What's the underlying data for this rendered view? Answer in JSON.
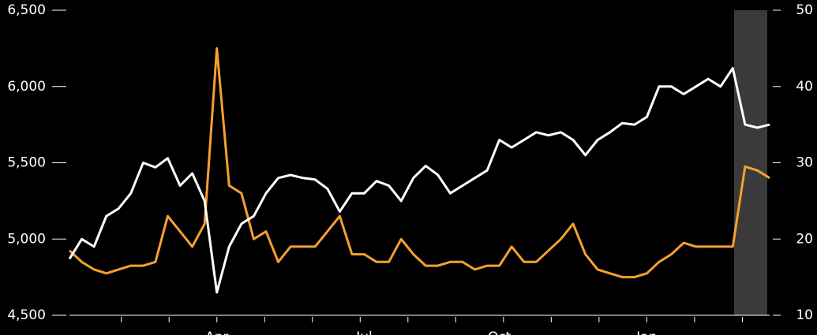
{
  "chart_data": {
    "type": "line",
    "categories": [
      null,
      null,
      null,
      null,
      null,
      null,
      null,
      null,
      null,
      null,
      null,
      null,
      "Apr",
      null,
      null,
      null,
      null,
      null,
      null,
      null,
      null,
      null,
      null,
      null,
      "Jul",
      null,
      null,
      null,
      null,
      null,
      null,
      null,
      null,
      null,
      null,
      "Oct",
      null,
      null,
      null,
      null,
      null,
      null,
      null,
      null,
      null,
      null,
      null,
      "Jan",
      null,
      null,
      null,
      null,
      null,
      null,
      null,
      null,
      null,
      null
    ],
    "series": [
      {
        "color": "#ffffff",
        "values": [
          4870,
          5000,
          4950,
          5150,
          5200,
          5300,
          5500,
          5470,
          5530,
          5350,
          5430,
          5250,
          4650,
          4950,
          5100,
          5150,
          5300,
          5400,
          5420,
          5400,
          5390,
          5330,
          5180,
          5300,
          5300,
          5380,
          5350,
          5250,
          5400,
          5480,
          5420,
          5300,
          5350,
          5400,
          5450,
          5650,
          5600,
          5650,
          5700,
          5680,
          5700,
          5650,
          5550,
          5650,
          5700,
          5760,
          5750,
          5800,
          6000,
          6000,
          5950,
          6000,
          6050,
          6000,
          6120,
          5750,
          5730,
          5750
        ]
      },
      {
        "color": "#f5a030",
        "axis": "y2",
        "values": [
          18.5,
          17,
          16,
          15.5,
          16,
          16.5,
          16.5,
          17,
          23,
          21,
          19,
          22,
          45,
          27,
          26,
          20,
          21,
          17,
          19,
          19,
          19,
          21,
          23,
          18,
          18,
          17,
          17,
          20,
          18,
          16.5,
          16.5,
          17,
          17,
          16,
          16.5,
          16.5,
          19,
          17,
          17,
          18.5,
          20,
          22,
          18,
          16,
          15.5,
          15,
          15,
          15.5,
          17,
          18,
          19.5,
          19,
          19,
          19,
          19,
          29.5,
          29,
          28
        ]
      }
    ],
    "ylim": [
      4500,
      6500
    ],
    "yticks": [
      {
        "value": 4500,
        "label": "4,500"
      },
      {
        "value": 5000,
        "label": "5,000"
      },
      {
        "value": 5500,
        "label": "5,500"
      },
      {
        "value": 6000,
        "label": "6,000"
      },
      {
        "value": 6500,
        "label": "6,500"
      }
    ],
    "y2lim": [
      10,
      50
    ],
    "y2ticks": [
      10,
      20,
      30,
      40,
      50
    ]
  }
}
